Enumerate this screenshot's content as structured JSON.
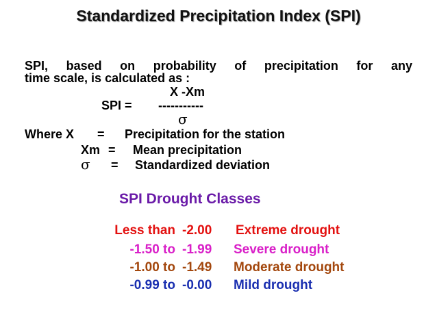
{
  "slide": {
    "title": "Standardized Precipitation Index (SPI)",
    "intro_line1": "SPI, based on probability of precipitation for any",
    "intro_line2": "time scale, is calculated as :",
    "formula": {
      "numerator": "X -Xm",
      "lhs": "SPI  =",
      "bar": "-----------",
      "denominator": "σ"
    },
    "definitions": [
      {
        "symbol": "Where X",
        "eq": "=",
        "meaning": "Precipitation for the station"
      },
      {
        "symbol": "Xm",
        "eq": "=",
        "meaning": "Mean precipitation"
      },
      {
        "symbol": "σ",
        "eq": "=",
        "meaning": "Standardized deviation"
      }
    ]
  },
  "classes": {
    "heading": "SPI Drought Classes",
    "rows": [
      {
        "range_from": "Less than",
        "range_to": "-2.00",
        "label": "Extreme drought",
        "color": "#e3100f"
      },
      {
        "range_from": "-1.50 to",
        "range_to": "-1.99",
        "label": "Severe drought",
        "color": "#d920c8"
      },
      {
        "range_from": "-1.00 to",
        "range_to": "-1.49",
        "label": "Moderate drought",
        "color": "#a3470d"
      },
      {
        "range_from": "-0.99 to",
        "range_to": "-0.00",
        "label": "Mild drought",
        "color": "#1a2fb0"
      }
    ]
  }
}
